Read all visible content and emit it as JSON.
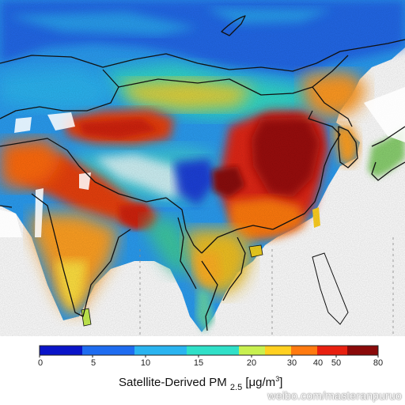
{
  "colorbar": {
    "title_prefix": "Satellite-Derived PM",
    "title_sub": "2.5",
    "title_unit": "[μg/m",
    "title_unit_sup": "3",
    "title_unit_close": "]",
    "ticks": [
      "0",
      "5",
      "10",
      "15",
      "20",
      "30",
      "40",
      "50",
      "80"
    ],
    "colors": [
      "#0a14c8",
      "#1e6cf0",
      "#2ab4f0",
      "#30e0c8",
      "#c8f050",
      "#ffd020",
      "#ff7a10",
      "#e82010",
      "#8a0a0a"
    ]
  },
  "watermark": "weibo.com/masteranpuruo",
  "colors": {
    "low": "#1e6cf0",
    "mid": "#2ab4f0",
    "moderate": "#ffd020",
    "high": "#e82010",
    "very_high": "#8a0a0a"
  }
}
